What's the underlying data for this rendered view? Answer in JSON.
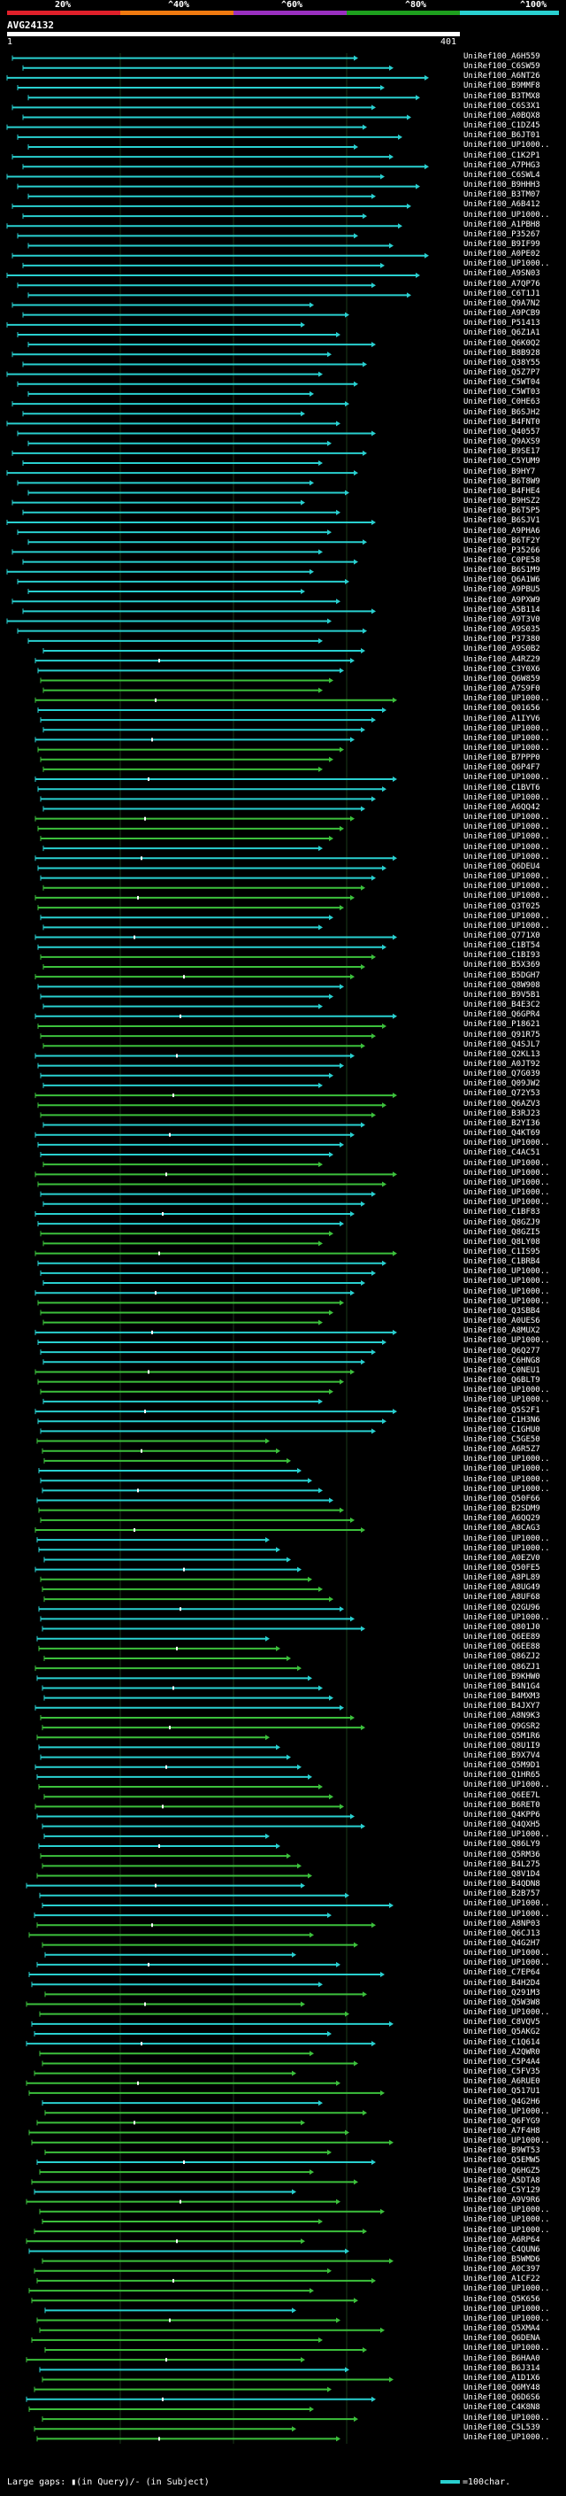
{
  "header": {
    "query_id": "AVG24132",
    "start_pos": "1",
    "end_pos": "401",
    "scale_labels": [
      "20%",
      "^40%",
      "^60%",
      "^80%",
      "^100%"
    ],
    "scale_colors": [
      "#e0202a",
      "#f07a10",
      "#9a30c0",
      "#1ea01e",
      "#29d0d0"
    ]
  },
  "colors": {
    "cyan": "#29d0d0",
    "green": "#3cc03c",
    "white_marker": "#ffffff",
    "gap_marker": "#ffffff"
  },
  "accessions": [
    "UniRef100_A6H559",
    "UniRef100_C6SW59",
    "UniRef100_A6NT26",
    "UniRef100_B9MMF8",
    "UniRef100_B3TMX8",
    "UniRef100_C6S3X1",
    "UniRef100_A0BQX8",
    "UniRef100_C1DZ45",
    "UniRef100_B6JT01",
    "UniRef100_UP1000..",
    "UniRef100_C1K2P1",
    "UniRef100_A7PHG3",
    "UniRef100_C6SWL4",
    "UniRef100_B9HHH3",
    "UniRef100_B3TM07",
    "UniRef100_A6B412",
    "UniRef100_UP1000..",
    "UniRef100_A1PBH8",
    "UniRef100_P35267",
    "UniRef100_B9IF99",
    "UniRef100_A0PE02",
    "UniRef100_UP1000..",
    "UniRef100_A9SN03",
    "UniRef100_A7QP76",
    "UniRef100_C6T1J1",
    "UniRef100_Q9A7N2",
    "UniRef100_A9PCB9",
    "UniRef100_P51413",
    "UniRef100_Q6Z1A1",
    "UniRef100_Q6K0Q2",
    "UniRef100_B8B928",
    "UniRef100_Q38Y55",
    "UniRef100_Q5Z7P7",
    "UniRef100_C5WT04",
    "UniRef100_C5WT03",
    "UniRef100_C0HE63",
    "UniRef100_B6SJH2",
    "UniRef100_B4FNT0",
    "UniRef100_Q40557",
    "UniRef100_Q9AXS9",
    "UniRef100_B9SE17",
    "UniRef100_C5YUM9",
    "UniRef100_B9HY7",
    "UniRef100_B6T8W9",
    "UniRef100_B4FHE4",
    "UniRef100_B9HSZ2",
    "UniRef100_B6T5P5",
    "UniRef100_B6SJV1",
    "UniRef100_A9PHA6",
    "UniRef100_B6TF2Y",
    "UniRef100_P35266",
    "UniRef100_C0PE58",
    "UniRef100_B6S1M9",
    "UniRef100_Q6A1W6",
    "UniRef100_A9PBU5",
    "UniRef100_A9PXW9",
    "UniRef100_A5B114",
    "UniRef100_A9T3V0",
    "UniRef100_A9S035",
    "UniRef100_P37380",
    "UniRef100_A9S0B2",
    "UniRef100_A4RZ29",
    "UniRef100_C3Y0X6",
    "UniRef100_Q6W859",
    "UniRef100_A7S9F0",
    "UniRef100_UP1000..",
    "UniRef100_Q01656",
    "UniRef100_A1IYV6",
    "UniRef100_UP1000..",
    "UniRef100_UP1000..",
    "UniRef100_UP1000..",
    "UniRef100_B7PPP0",
    "UniRef100_Q6P4F7",
    "UniRef100_UP1000..",
    "UniRef100_C1BVT6",
    "UniRef100_UP1000..",
    "UniRef100_A6QQ42",
    "UniRef100_UP1000..",
    "UniRef100_UP1000..",
    "UniRef100_UP1000..",
    "UniRef100_UP1000..",
    "UniRef100_UP1000..",
    "UniRef100_Q6DEU4",
    "UniRef100_UP1000..",
    "UniRef100_UP1000..",
    "UniRef100_UP1000..",
    "UniRef100_Q3T025",
    "UniRef100_UP1000..",
    "UniRef100_UP1000..",
    "UniRef100_Q771X0",
    "UniRef100_C1BT54",
    "UniRef100_C1BI93",
    "UniRef100_B5X369",
    "UniRef100_B5DGH7",
    "UniRef100_Q8W908",
    "UniRef100_B9V5B1",
    "UniRef100_B4E3C2",
    "UniRef100_Q6GPR4",
    "UniRef100_P18621",
    "UniRef100_Q91R75",
    "UniRef100_Q4SJL7",
    "UniRef100_Q2KL13",
    "UniRef100_A0JT92",
    "UniRef100_Q7G039",
    "UniRef100_Q09JW2",
    "UniRef100_Q72Y53",
    "UniRef100_Q6AZV3",
    "UniRef100_B3RJ23",
    "UniRef100_B2YI36",
    "UniRef100_Q4KT69",
    "UniRef100_UP1000..",
    "UniRef100_C4AC51",
    "UniRef100_UP1000..",
    "UniRef100_UP1000..",
    "UniRef100_UP1000..",
    "UniRef100_UP1000..",
    "UniRef100_UP1000..",
    "UniRef100_C1BF83",
    "UniRef100_Q8GZJ9",
    "UniRef100_Q8GZI5",
    "UniRef100_Q8LY08",
    "UniRef100_C1IS95",
    "UniRef100_C1BRB4",
    "UniRef100_UP1000..",
    "UniRef100_UP1000..",
    "UniRef100_UP1000..",
    "UniRef100_UP1000..",
    "UniRef100_Q3SBB4",
    "UniRef100_A0UES6",
    "UniRef100_A8MUX2",
    "UniRef100_UP1000..",
    "UniRef100_Q6Q277",
    "UniRef100_C6HNG8",
    "UniRef100_C0NEU1",
    "UniRef100_Q6BLT9",
    "UniRef100_UP1000..",
    "UniRef100_UP1000..",
    "UniRef100_Q5S2F1",
    "UniRef100_C1H3N6",
    "UniRef100_C1GHU0",
    "UniRef100_C5GE50",
    "UniRef100_A6R5Z7",
    "UniRef100_UP1000..",
    "UniRef100_UP1000..",
    "UniRef100_UP1000..",
    "UniRef100_UP1000..",
    "UniRef100_Q50F66",
    "UniRef100_B2SDM9",
    "UniRef100_A6QQ29",
    "UniRef100_A8CAG3",
    "UniRef100_UP1000..",
    "UniRef100_UP1000..",
    "UniRef100_A0EZV0",
    "UniRef100_Q50FE5",
    "UniRef100_A8PL89",
    "UniRef100_A8UG49",
    "UniRef100_A8UF68",
    "UniRef100_Q2GU96",
    "UniRef100_UP1000..",
    "UniRef100_Q801J0",
    "UniRef100_Q6EE89",
    "UniRef100_Q6EE88",
    "UniRef100_Q86ZJ2",
    "UniRef100_Q86ZJ1",
    "UniRef100_B9KHW0",
    "UniRef100_B4N1G4",
    "UniRef100_B4MXM3",
    "UniRef100_B4JXY7",
    "UniRef100_A8N9K3",
    "UniRef100_Q9GSR2",
    "UniRef100_Q5M1R6",
    "UniRef100_Q8U1I9",
    "UniRef100_B9X7V4",
    "UniRef100_Q5M9D1",
    "UniRef100_Q1HR65",
    "UniRef100_UP1000..",
    "UniRef100_Q6EE7L",
    "UniRef100_B6RET0",
    "UniRef100_Q4KPP6",
    "UniRef100_Q4QXH5",
    "UniRef100_UP1000..",
    "UniRef100_Q86LY9",
    "UniRef100_Q5RM36",
    "UniRef100_B4L275",
    "UniRef100_Q8V1D4",
    "UniRef100_B4QDN8",
    "UniRef100_B2B757",
    "UniRef100_UP1000..",
    "UniRef100_UP1000..",
    "UniRef100_A8NP03",
    "UniRef100_Q6CJ13",
    "UniRef100_Q4G2H7",
    "UniRef100_UP1000..",
    "UniRef100_UP1000..",
    "UniRef100_C7EP64",
    "UniRef100_B4H2D4",
    "UniRef100_Q291M3",
    "UniRef100_Q5W3W8",
    "UniRef100_UP1000..",
    "UniRef100_C8VQV5",
    "UniRef100_Q5AKG2",
    "UniRef100_C1Q614",
    "UniRef100_A2QWR0",
    "UniRef100_C5P4A4",
    "UniRef100_C5FV35",
    "UniRef100_A6RUE0",
    "UniRef100_Q517U1",
    "UniRef100_Q4G2H6",
    "UniRef100_UP1000..",
    "UniRef100_Q6FYG9",
    "UniRef100_A7F4H8",
    "UniRef100_UP1000..",
    "UniRef100_B9WT53",
    "UniRef100_Q5EMW5",
    "UniRef100_Q6HGZ5",
    "UniRef100_A5DTA8",
    "UniRef100_C5Y129",
    "UniRef100_A9V9R6",
    "UniRef100_UP1000..",
    "UniRef100_UP1000..",
    "UniRef100_UP1000..",
    "UniRef100_A6RP64",
    "UniRef100_C4QUN6",
    "UniRef100_B5WMD6",
    "UniRef100_A0C397",
    "UniRef100_A1CF22",
    "UniRef100_UP1000..",
    "UniRef100_Q5K656",
    "UniRef100_UP1000..",
    "UniRef100_UP1000..",
    "UniRef100_Q5XMA4",
    "UniRef100_Q6DENA",
    "UniRef100_UP1000..",
    "UniRef100_B6HAA0",
    "UniRef100_B6J314",
    "UniRef100_A1D1X6",
    "UniRef100_Q6MY48",
    "UniRef100_Q6D6S6",
    "UniRef100_C4K8N8",
    "UniRef100_UP1000..",
    "UniRef100_C5L539",
    "UniRef100_UP1000.."
  ],
  "footer": {
    "left": "Large gaps: ▮(in Query)/- (in Subject)",
    "right": "=100char."
  }
}
